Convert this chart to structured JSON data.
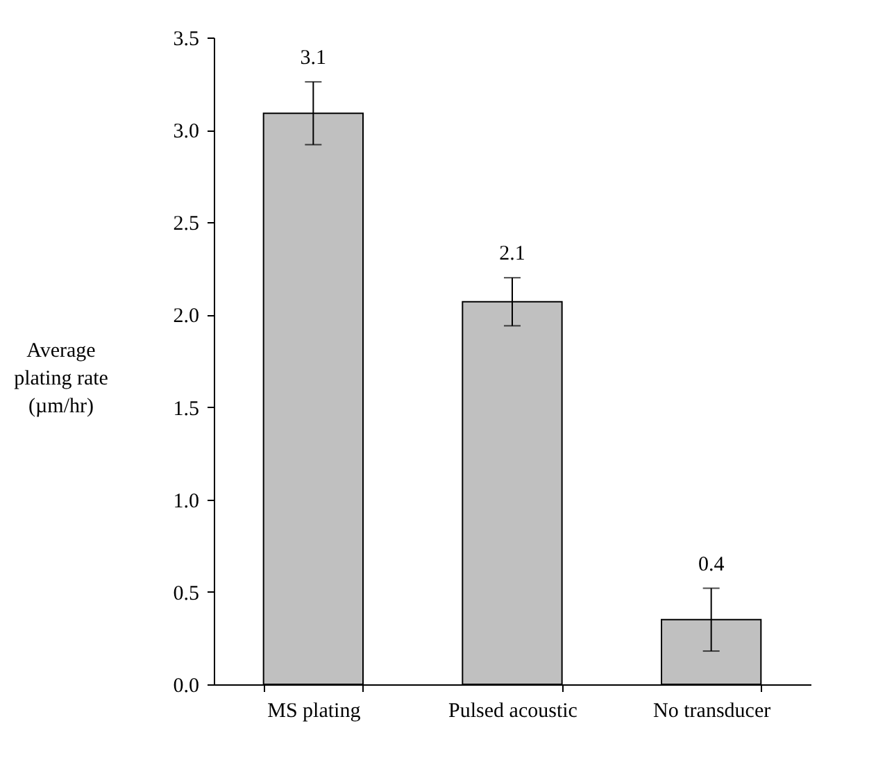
{
  "chart_data": {
    "type": "bar",
    "ylabel": "Average\nplating rate\n(µm/hr)",
    "categories": [
      "MS plating",
      "Pulsed acoustic",
      "No transducer"
    ],
    "values": [
      3.09,
      2.07,
      0.35
    ],
    "errors": [
      0.17,
      0.13,
      0.17
    ],
    "value_labels": [
      "3.1",
      "2.1",
      "0.4"
    ],
    "color": "#c0c0c0",
    "ylim": [
      0,
      3.5
    ],
    "yticks": [
      {
        "value": 0,
        "label": "0.0"
      },
      0.5,
      {
        "value": 1,
        "label": "1.0"
      },
      1.5,
      {
        "value": 2,
        "label": "2.0"
      },
      2.5,
      {
        "value": 3,
        "label": "3.0"
      },
      3.5
    ],
    "grid": false
  }
}
